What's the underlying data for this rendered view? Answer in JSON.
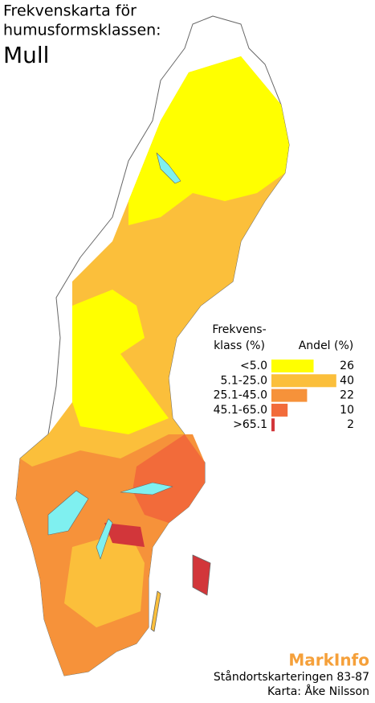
{
  "title": {
    "lines": [
      "Frekvenskarta för",
      "humusformsklassen:"
    ],
    "subject": "Mull"
  },
  "legend": {
    "class_header": [
      "Frekvens-",
      "klass (%)"
    ],
    "share_header": "Andel (%)",
    "rows": [
      {
        "class": "<5.0",
        "color": "#ffff00",
        "share": 26
      },
      {
        "class": "5.1-25.0",
        "color": "#fbbf3b",
        "share": 40
      },
      {
        "class": "25.1-45.0",
        "color": "#f6923a",
        "share": 22
      },
      {
        "class": "45.1-65.0",
        "color": "#f26b3a",
        "share": 10
      },
      {
        "class": ">65.1",
        "color": "#d2363a",
        "share": 2
      }
    ]
  },
  "footer": {
    "brand": "MarkInfo",
    "survey": "Ståndortskarteringen 83-87",
    "credit": "Karta: Åke Nilsson"
  }
}
